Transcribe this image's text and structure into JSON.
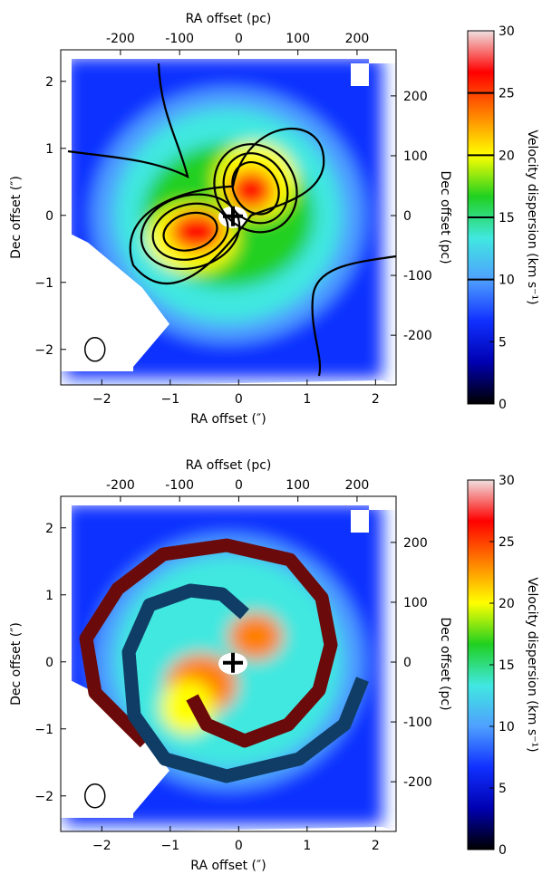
{
  "chart_data": [
    {
      "type": "image",
      "xlabel": "RA offset (″)",
      "x2label": "RA offset (pc)",
      "ylabel": "Dec offset (″)",
      "y2label": "Dec offset (pc)",
      "colorbar_label": "Velocity dispersion (km s⁻¹)",
      "xlim": [
        -2.6,
        2.3
      ],
      "xticks": [
        {
          "value": -2,
          "label": "−2"
        },
        {
          "value": -1,
          "label": "−1"
        },
        0,
        1,
        2
      ],
      "x2lim": [
        -301,
        266
      ],
      "x2ticks": [
        -200,
        -100,
        0,
        100,
        200
      ],
      "ylim": [
        -2.53,
        2.47
      ],
      "yticks": [
        {
          "value": -2,
          "label": "−2"
        },
        {
          "value": -1,
          "label": "−1"
        },
        0,
        1,
        2
      ],
      "y2lim": [
        -283,
        277
      ],
      "y2ticks": [
        -200,
        -100,
        0,
        100,
        200
      ],
      "clim": [
        0,
        30
      ],
      "cticks": [
        0,
        5,
        10,
        15,
        20,
        25,
        30
      ],
      "contour_levels": [
        10,
        15,
        20,
        25
      ],
      "colors": [
        "#000000",
        "#0000b0",
        "#1030ff",
        "#4fa0ff",
        "#40e8e0",
        "#20d020",
        "#ffff00",
        "#ff8000",
        "#ff0000",
        "#f0e0e0"
      ],
      "overlay": "contours"
    },
    {
      "type": "image",
      "xlabel": "RA offset (″)",
      "x2label": "RA offset (pc)",
      "ylabel": "Dec offset (″)",
      "y2label": "Dec offset (pc)",
      "colorbar_label": "Velocity dispersion (km s⁻¹)",
      "xlim": [
        -2.6,
        2.3
      ],
      "xticks": [
        {
          "value": -2,
          "label": "−2"
        },
        {
          "value": -1,
          "label": "−1"
        },
        0,
        1,
        2
      ],
      "x2lim": [
        -301,
        266
      ],
      "x2ticks": [
        -200,
        -100,
        0,
        100,
        200
      ],
      "ylim": [
        -2.53,
        2.47
      ],
      "yticks": [
        {
          "value": -2,
          "label": "−2"
        },
        {
          "value": -1,
          "label": "−1"
        },
        0,
        1,
        2
      ],
      "y2lim": [
        -283,
        277
      ],
      "y2ticks": [
        -200,
        -100,
        0,
        100,
        200
      ],
      "clim": [
        0,
        30
      ],
      "cticks": [
        0,
        5,
        10,
        15,
        20,
        25,
        30
      ],
      "colors": [
        "#000000",
        "#0000b0",
        "#1030ff",
        "#4fa0ff",
        "#40e8e0",
        "#20d020",
        "#ffff00",
        "#ff8000",
        "#ff0000",
        "#f0e0e0"
      ],
      "overlay": "spirals"
    }
  ]
}
